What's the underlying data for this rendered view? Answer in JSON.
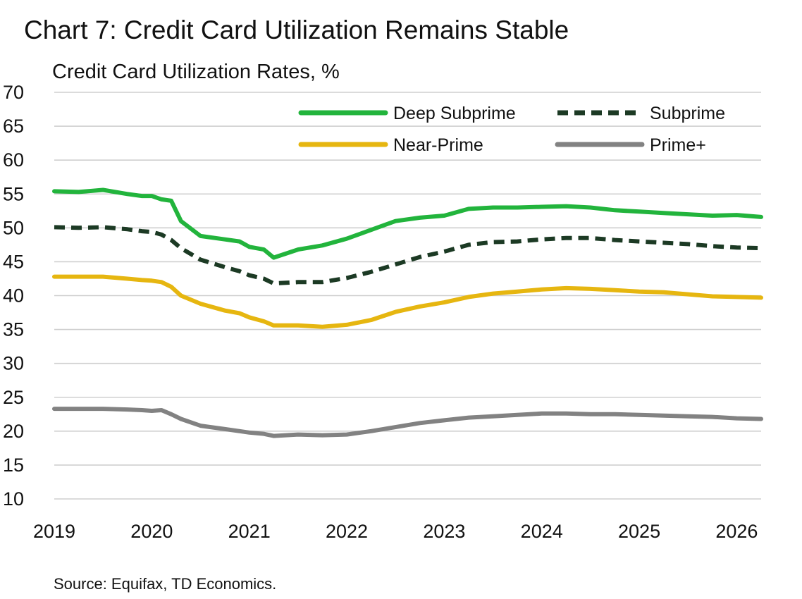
{
  "title": "Chart 7: Credit Card Utilization Remains Stable",
  "subtitle": "Credit Card Utilization Rates, %",
  "source": "Source: Equifax, TD Economics.",
  "chart_data": {
    "type": "line",
    "ylim": [
      10,
      70
    ],
    "xlim": [
      2019.0,
      2026.25
    ],
    "yticks": [
      10,
      15,
      20,
      25,
      30,
      35,
      40,
      45,
      50,
      55,
      60,
      65,
      70
    ],
    "xticks": [
      2019,
      2020,
      2021,
      2022,
      2023,
      2024,
      2025,
      2026
    ],
    "grid": "horizontal",
    "legend_position": "top-right",
    "x": [
      2019.0,
      2019.25,
      2019.5,
      2019.75,
      2019.9,
      2020.0,
      2020.1,
      2020.2,
      2020.3,
      2020.5,
      2020.75,
      2020.9,
      2021.0,
      2021.15,
      2021.25,
      2021.5,
      2021.75,
      2022.0,
      2022.25,
      2022.5,
      2022.75,
      2023.0,
      2023.25,
      2023.5,
      2023.75,
      2024.0,
      2024.25,
      2024.5,
      2024.75,
      2025.0,
      2025.25,
      2025.5,
      2025.75,
      2026.0,
      2026.25
    ],
    "series": [
      {
        "name": "Deep Subprime",
        "color": "#22b43c",
        "style": "solid",
        "values": [
          55.4,
          55.3,
          55.6,
          55.0,
          54.7,
          54.7,
          54.2,
          54.0,
          51.0,
          48.8,
          48.3,
          48.0,
          47.2,
          46.8,
          45.6,
          46.8,
          47.4,
          48.4,
          49.7,
          51.0,
          51.5,
          51.8,
          52.8,
          53.0,
          53.0,
          53.1,
          53.2,
          53.0,
          52.6,
          52.4,
          52.2,
          52.0,
          51.8,
          51.9,
          51.6
        ]
      },
      {
        "name": "Subprime",
        "color": "#1c3a24",
        "style": "dashed",
        "values": [
          50.1,
          50.0,
          50.1,
          49.8,
          49.5,
          49.4,
          49.0,
          48.2,
          47.0,
          45.3,
          44.2,
          43.6,
          43.0,
          42.5,
          41.8,
          42.0,
          42.0,
          42.6,
          43.5,
          44.6,
          45.7,
          46.5,
          47.5,
          47.9,
          48.0,
          48.3,
          48.5,
          48.5,
          48.2,
          48.0,
          47.8,
          47.6,
          47.3,
          47.1,
          47.0
        ]
      },
      {
        "name": "Near-Prime",
        "color": "#e6b610",
        "style": "solid",
        "values": [
          42.8,
          42.8,
          42.8,
          42.5,
          42.3,
          42.2,
          42.0,
          41.3,
          40.0,
          38.8,
          37.8,
          37.4,
          36.8,
          36.2,
          35.6,
          35.6,
          35.4,
          35.7,
          36.4,
          37.6,
          38.4,
          39.0,
          39.8,
          40.3,
          40.6,
          40.9,
          41.1,
          41.0,
          40.8,
          40.6,
          40.5,
          40.2,
          39.9,
          39.8,
          39.7
        ]
      },
      {
        "name": "Prime+",
        "color": "#828282",
        "style": "solid",
        "values": [
          23.3,
          23.3,
          23.3,
          23.2,
          23.1,
          23.0,
          23.1,
          22.5,
          21.8,
          20.8,
          20.3,
          20.0,
          19.8,
          19.6,
          19.3,
          19.5,
          19.4,
          19.5,
          20.0,
          20.6,
          21.2,
          21.6,
          22.0,
          22.2,
          22.4,
          22.6,
          22.6,
          22.5,
          22.5,
          22.4,
          22.3,
          22.2,
          22.1,
          21.9,
          21.8
        ]
      }
    ]
  }
}
